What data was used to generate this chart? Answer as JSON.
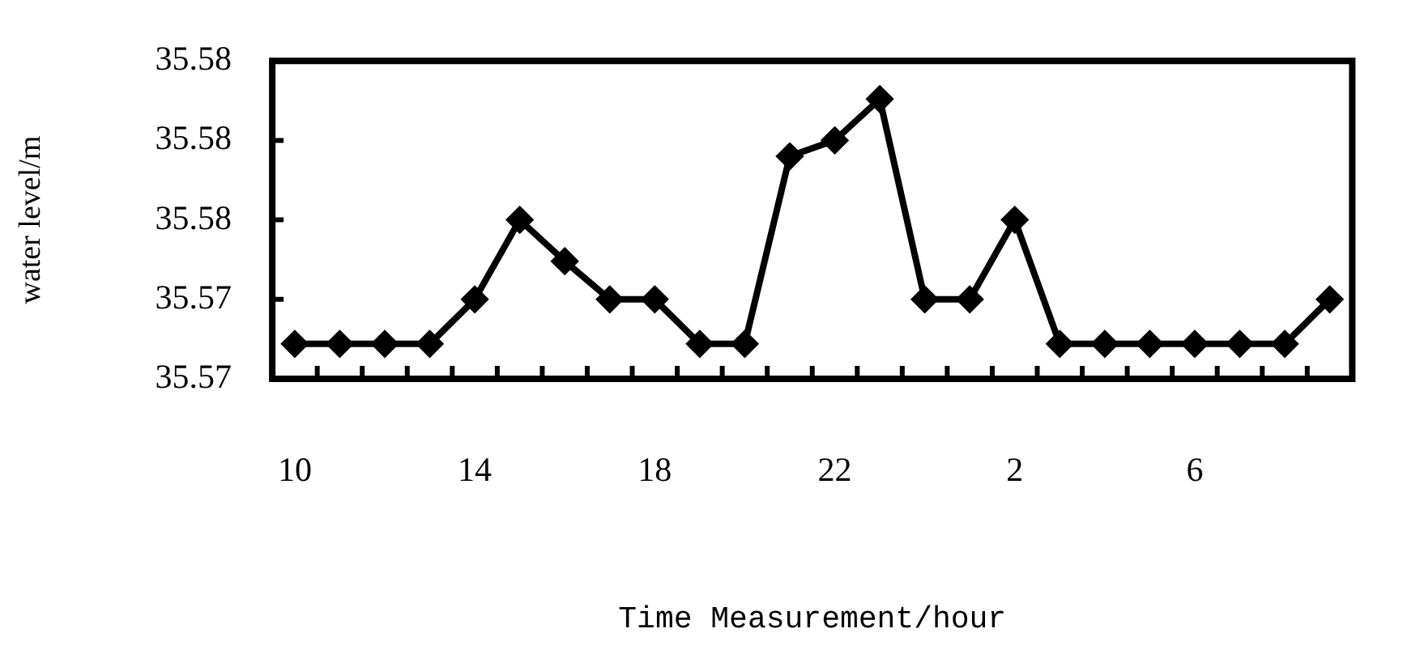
{
  "chart_data": {
    "type": "line",
    "xlabel": "Time Measurement/hour",
    "ylabel": "water level/m",
    "categories": [
      "10",
      null,
      null,
      null,
      "14",
      null,
      null,
      null,
      "18",
      null,
      null,
      null,
      "22",
      null,
      null,
      null,
      "2",
      null,
      null,
      null,
      "6",
      null,
      null,
      null
    ],
    "values": [
      35.5711,
      35.5711,
      35.5711,
      35.5711,
      35.5725,
      35.575,
      35.5737,
      35.5725,
      35.5725,
      35.5711,
      35.5711,
      35.577,
      35.5775,
      35.5788,
      35.5725,
      35.5725,
      35.575,
      35.5711,
      35.5711,
      35.5711,
      35.5711,
      35.5711,
      35.5711,
      35.5725
    ],
    "color": "#000000",
    "ylim": [
      35.57,
      35.58
    ],
    "yticks": [
      {
        "value": 35.57,
        "label": "35.57"
      },
      {
        "value": 35.5725,
        "label": "35.57"
      },
      {
        "value": 35.575,
        "label": "35.58"
      },
      {
        "value": 35.5775,
        "label": "35.58"
      },
      {
        "value": 35.58,
        "label": "35.58"
      }
    ],
    "grid": false,
    "legend": false,
    "marker": "diamond",
    "line_style": "solid"
  }
}
